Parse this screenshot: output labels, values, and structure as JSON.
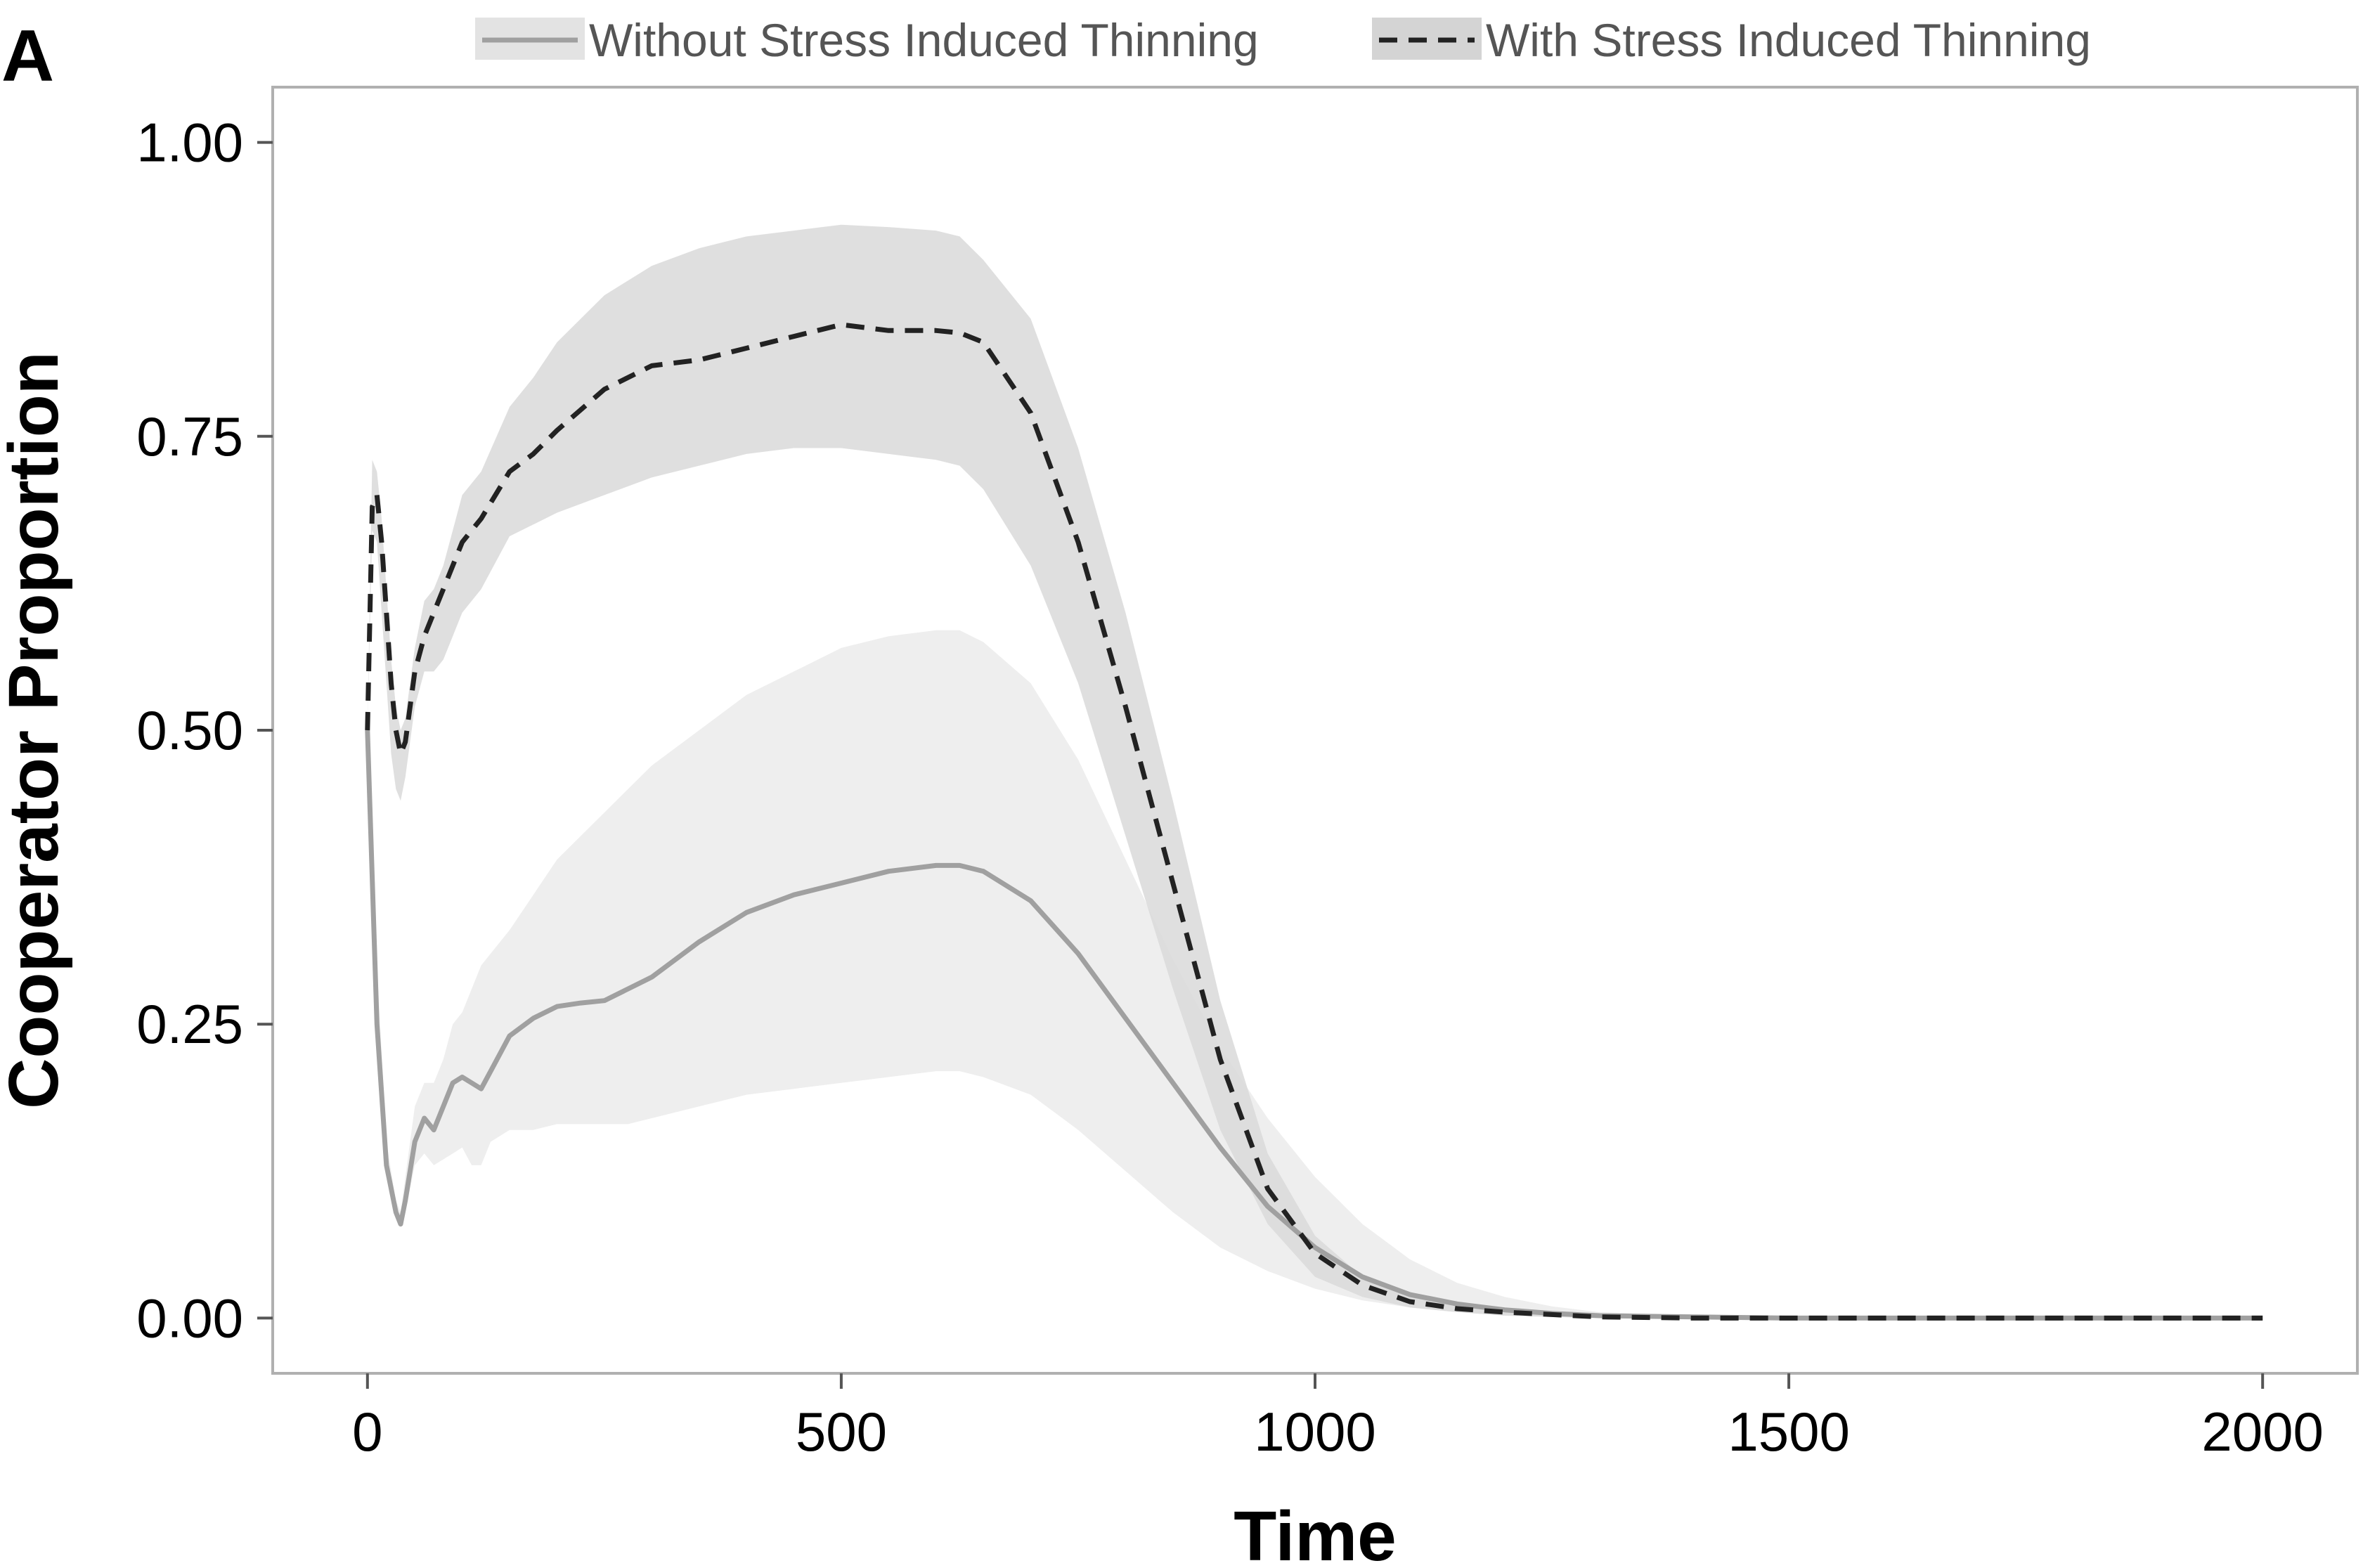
{
  "panel_label": "A",
  "chart_data": {
    "type": "line",
    "title": "",
    "xlabel": "Time",
    "ylabel": "Cooperator Proportion",
    "xlim": [
      -100,
      2100
    ],
    "ylim": [
      -0.047,
      1.047
    ],
    "xticks": [
      0,
      500,
      1000,
      1500,
      2000
    ],
    "xtick_labels": [
      "0",
      "500",
      "1000",
      "1500",
      "2000"
    ],
    "yticks": [
      0,
      0.25,
      0.5,
      0.75,
      1.0
    ],
    "ytick_labels": [
      "0.00",
      "0.25",
      "0.50",
      "0.75",
      "1.00"
    ],
    "grid": false,
    "legend_position": "top",
    "series": [
      {
        "name": "Without Stress Induced Thinning",
        "line_style": "solid",
        "color": "#a0a0a0",
        "ribbon_color": "#eeeeee",
        "x": [
          0,
          10,
          20,
          30,
          35,
          40,
          50,
          60,
          70,
          80,
          90,
          100,
          110,
          120,
          130,
          150,
          175,
          200,
          225,
          250,
          275,
          300,
          350,
          400,
          450,
          500,
          550,
          600,
          625,
          650,
          700,
          750,
          800,
          850,
          900,
          950,
          1000,
          1050,
          1100,
          1150,
          1200,
          1250,
          1300,
          1400,
          1500,
          1600,
          1700,
          1800,
          1900,
          2000
        ],
        "y": [
          0.5,
          0.25,
          0.13,
          0.09,
          0.08,
          0.1,
          0.15,
          0.17,
          0.16,
          0.18,
          0.2,
          0.205,
          0.2,
          0.195,
          0.21,
          0.24,
          0.255,
          0.265,
          0.268,
          0.27,
          0.28,
          0.29,
          0.32,
          0.345,
          0.36,
          0.37,
          0.38,
          0.385,
          0.385,
          0.38,
          0.355,
          0.31,
          0.255,
          0.2,
          0.145,
          0.095,
          0.06,
          0.035,
          0.02,
          0.012,
          0.007,
          0.004,
          0.002,
          0.001,
          0.0,
          0.0,
          0.0,
          0.0,
          0.0,
          0.0
        ],
        "lower": [
          0.5,
          0.25,
          0.13,
          0.09,
          0.08,
          0.09,
          0.13,
          0.14,
          0.13,
          0.135,
          0.14,
          0.145,
          0.13,
          0.13,
          0.15,
          0.16,
          0.16,
          0.165,
          0.165,
          0.165,
          0.165,
          0.17,
          0.18,
          0.19,
          0.195,
          0.2,
          0.205,
          0.21,
          0.21,
          0.205,
          0.19,
          0.16,
          0.125,
          0.09,
          0.06,
          0.04,
          0.025,
          0.015,
          0.009,
          0.005,
          0.003,
          0.001,
          0.0,
          0.0,
          0.0,
          0.0,
          0.0,
          0.0,
          0.0,
          0.0
        ],
        "upper": [
          0.5,
          0.3,
          0.15,
          0.1,
          0.09,
          0.12,
          0.18,
          0.2,
          0.2,
          0.22,
          0.25,
          0.26,
          0.28,
          0.3,
          0.31,
          0.33,
          0.36,
          0.39,
          0.41,
          0.43,
          0.45,
          0.47,
          0.5,
          0.53,
          0.55,
          0.57,
          0.58,
          0.585,
          0.585,
          0.575,
          0.54,
          0.475,
          0.39,
          0.305,
          0.23,
          0.17,
          0.12,
          0.08,
          0.05,
          0.03,
          0.018,
          0.01,
          0.005,
          0.002,
          0.0,
          0.0,
          0.0,
          0.0,
          0.0,
          0.0
        ]
      },
      {
        "name": "With Stress Induced Thinning",
        "line_style": "dashed",
        "color": "#222222",
        "ribbon_color": "#d9d9d9",
        "x": [
          0,
          5,
          10,
          15,
          20,
          25,
          30,
          35,
          40,
          50,
          60,
          70,
          80,
          90,
          100,
          120,
          150,
          175,
          200,
          250,
          300,
          350,
          400,
          450,
          500,
          550,
          600,
          625,
          650,
          700,
          750,
          800,
          850,
          900,
          950,
          1000,
          1050,
          1100,
          1150,
          1200,
          1250,
          1300,
          1400,
          1500,
          1600,
          1700,
          1800,
          1900,
          2000
        ],
        "y": [
          0.5,
          0.69,
          0.7,
          0.66,
          0.6,
          0.54,
          0.5,
          0.48,
          0.49,
          0.55,
          0.58,
          0.6,
          0.62,
          0.64,
          0.66,
          0.68,
          0.72,
          0.735,
          0.755,
          0.79,
          0.81,
          0.815,
          0.825,
          0.835,
          0.845,
          0.84,
          0.84,
          0.838,
          0.83,
          0.77,
          0.66,
          0.52,
          0.37,
          0.22,
          0.11,
          0.055,
          0.028,
          0.014,
          0.008,
          0.005,
          0.003,
          0.001,
          0.0,
          0.0,
          0.0,
          0.0,
          0.0,
          0.0,
          0.0
        ],
        "lower": [
          0.5,
          0.67,
          0.66,
          0.6,
          0.54,
          0.48,
          0.45,
          0.44,
          0.46,
          0.52,
          0.55,
          0.55,
          0.56,
          0.58,
          0.6,
          0.62,
          0.665,
          0.675,
          0.685,
          0.7,
          0.715,
          0.725,
          0.735,
          0.74,
          0.74,
          0.735,
          0.73,
          0.725,
          0.705,
          0.64,
          0.54,
          0.41,
          0.28,
          0.16,
          0.08,
          0.035,
          0.018,
          0.009,
          0.005,
          0.002,
          0.001,
          0.0,
          0.0,
          0.0,
          0.0,
          0.0,
          0.0,
          0.0,
          0.0
        ],
        "upper": [
          0.5,
          0.73,
          0.72,
          0.68,
          0.62,
          0.56,
          0.52,
          0.5,
          0.51,
          0.57,
          0.61,
          0.62,
          0.64,
          0.67,
          0.7,
          0.72,
          0.775,
          0.8,
          0.83,
          0.87,
          0.895,
          0.91,
          0.92,
          0.925,
          0.93,
          0.928,
          0.925,
          0.92,
          0.9,
          0.85,
          0.74,
          0.6,
          0.44,
          0.27,
          0.14,
          0.07,
          0.035,
          0.018,
          0.01,
          0.006,
          0.003,
          0.001,
          0.0,
          0.0,
          0.0,
          0.0,
          0.0,
          0.0,
          0.0
        ]
      }
    ]
  }
}
